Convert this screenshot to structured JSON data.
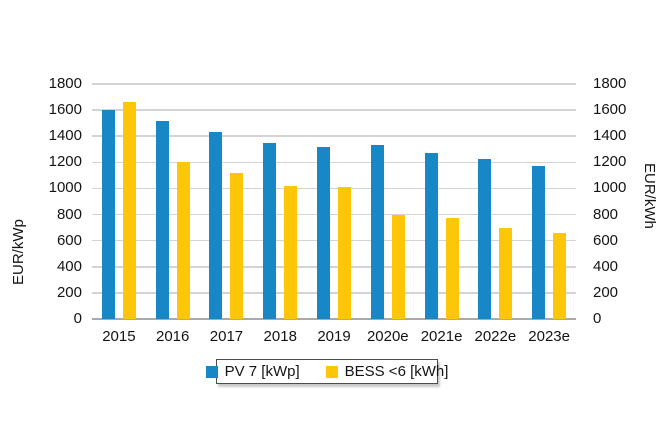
{
  "chart_data": {
    "type": "bar",
    "categories": [
      "2015",
      "2016",
      "2017",
      "2018",
      "2019",
      "2020e",
      "2021e",
      "2022e",
      "2023e"
    ],
    "series": [
      {
        "name": "PV 7 [kWp]",
        "color": "#1787c5",
        "values": [
          1600,
          1520,
          1430,
          1345,
          1320,
          1330,
          1270,
          1225,
          1170
        ]
      },
      {
        "name": "BESS <6 [kWh]",
        "color": "#fdc608",
        "values": [
          1660,
          1200,
          1120,
          1020,
          1010,
          795,
          770,
          700,
          660
        ]
      }
    ],
    "left_axis_title": "EUR/kWp",
    "right_axis_title": "EUR/kWh",
    "ylim": [
      0,
      1800
    ],
    "yticks": [
      0,
      200,
      400,
      600,
      800,
      1000,
      1200,
      1400,
      1600,
      1800
    ],
    "grid": true,
    "legend_position": "bottom",
    "gridline_color": "#d4d4d4",
    "baseline_color": "#a9a9a9",
    "background_color": "#ffffff"
  }
}
